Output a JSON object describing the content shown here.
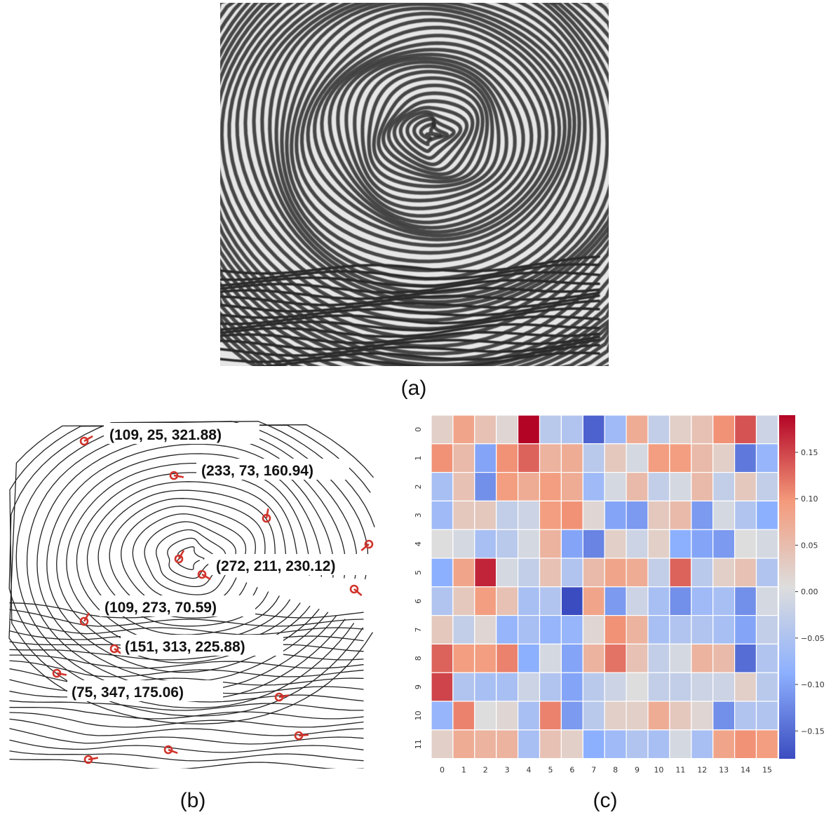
{
  "captions": {
    "a": "(a)",
    "b": "(b)",
    "c": "(c)"
  },
  "minutiae_labels": [
    "(109, 25, 321.88)",
    "(233, 73, 160.94)",
    "(272, 211, 230.12)",
    "(109, 273, 70.59)",
    "(151, 313, 225.88)",
    "(75, 347, 175.06)"
  ],
  "colors": {
    "minutia": "#d0342c",
    "ridge": "#222222",
    "print_bg": "#e8e8e8"
  },
  "chart_data": {
    "type": "heatmap",
    "x_ticks": [
      "0",
      "1",
      "2",
      "3",
      "4",
      "5",
      "6",
      "7",
      "8",
      "9",
      "10",
      "11",
      "12",
      "13",
      "14",
      "15"
    ],
    "y_ticks": [
      "0",
      "1",
      "2",
      "3",
      "4",
      "5",
      "6",
      "7",
      "8",
      "9",
      "10",
      "11"
    ],
    "colorbar_ticks": [
      "0.15",
      "0.10",
      "0.05",
      "0.00",
      "−0.05",
      "−0.10",
      "−0.15"
    ],
    "colorbar_values": [
      0.15,
      0.1,
      0.05,
      0.0,
      -0.05,
      -0.1,
      -0.15
    ],
    "vmin": -0.18,
    "vmax": 0.19,
    "colormap": "coolwarm",
    "values": [
      [
        0.02,
        0.08,
        0.04,
        0.01,
        0.19,
        -0.04,
        -0.05,
        -0.16,
        -0.07,
        0.07,
        -0.03,
        0.02,
        0.04,
        0.1,
        0.14,
        -0.02
      ],
      [
        0.1,
        0.05,
        -0.1,
        0.1,
        0.13,
        0.06,
        0.07,
        -0.04,
        0.03,
        -0.01,
        0.09,
        0.09,
        0.05,
        0.02,
        -0.14,
        -0.08
      ],
      [
        -0.06,
        0.04,
        -0.12,
        0.09,
        0.07,
        0.09,
        0.07,
        -0.07,
        -0.01,
        0.05,
        -0.03,
        -0.01,
        0.05,
        -0.03,
        0.03,
        -0.03
      ],
      [
        -0.07,
        0.03,
        0.03,
        -0.03,
        -0.02,
        0.09,
        0.1,
        0.01,
        -0.1,
        -0.11,
        0.03,
        0.05,
        -0.11,
        -0.01,
        -0.05,
        -0.09
      ],
      [
        0.0,
        -0.01,
        -0.06,
        -0.04,
        -0.01,
        0.06,
        -0.1,
        -0.13,
        0.02,
        -0.02,
        0.02,
        -0.09,
        -0.1,
        -0.11,
        0.0,
        -0.01
      ],
      [
        -0.09,
        0.08,
        0.17,
        -0.01,
        -0.03,
        0.04,
        -0.05,
        0.05,
        0.08,
        0.07,
        -0.03,
        0.13,
        -0.04,
        0.02,
        0.04,
        -0.05
      ],
      [
        -0.05,
        0.03,
        0.09,
        0.04,
        -0.06,
        -0.05,
        -0.18,
        0.08,
        -0.11,
        -0.02,
        -0.06,
        -0.12,
        -0.07,
        -0.06,
        -0.12,
        -0.01
      ],
      [
        0.03,
        -0.03,
        0.01,
        -0.08,
        -0.06,
        -0.08,
        -0.08,
        0.01,
        0.1,
        0.06,
        -0.06,
        -0.05,
        -0.05,
        -0.06,
        -0.1,
        -0.03
      ],
      [
        0.13,
        0.09,
        0.09,
        0.11,
        -0.09,
        -0.01,
        -0.1,
        0.06,
        0.12,
        0.04,
        -0.03,
        -0.01,
        0.06,
        0.05,
        -0.15,
        -0.05
      ],
      [
        0.15,
        -0.05,
        -0.06,
        -0.06,
        -0.02,
        -0.05,
        -0.1,
        -0.04,
        -0.02,
        0.0,
        -0.03,
        -0.03,
        -0.02,
        -0.02,
        0.02,
        -0.04
      ],
      [
        -0.08,
        0.11,
        0.0,
        0.01,
        -0.06,
        0.11,
        -0.11,
        -0.04,
        0.02,
        0.02,
        0.07,
        0.03,
        0.01,
        -0.12,
        -0.05,
        -0.05
      ],
      [
        0.02,
        0.07,
        0.06,
        0.06,
        -0.06,
        0.04,
        0.02,
        -0.09,
        -0.07,
        -0.05,
        -0.06,
        -0.01,
        -0.06,
        0.08,
        0.1,
        0.09
      ]
    ]
  }
}
